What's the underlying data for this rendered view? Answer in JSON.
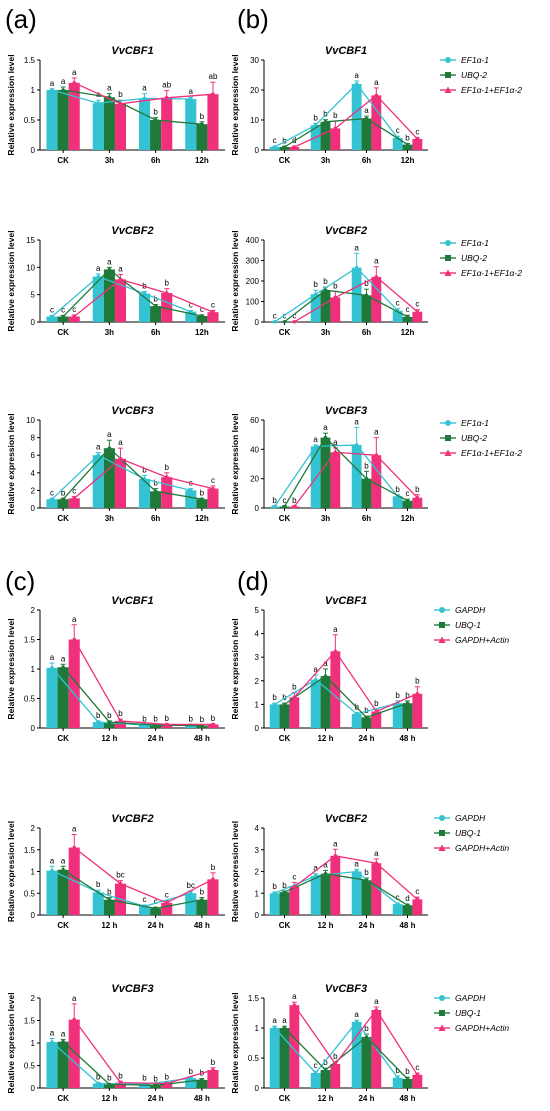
{
  "panel_labels": [
    "(a)",
    "(b)",
    "(c)",
    "(d)"
  ],
  "colors": {
    "series1": "#33c3d3",
    "series2": "#1f7a3a",
    "series3": "#f0307a"
  },
  "chart_data": [
    {
      "id": "a1",
      "panel": "(a)",
      "type": "bar",
      "title": "VvCBF1",
      "ylabel": "Relative expression level",
      "categories": [
        "CK",
        "3h",
        "6h",
        "12h"
      ],
      "ylim": [
        0,
        1.5
      ],
      "yticks": [
        0,
        0.5,
        1.0,
        1.5
      ],
      "series": [
        {
          "values": [
            1.0,
            0.78,
            0.86,
            0.85
          ],
          "errors": [
            0.02,
            0.05,
            0.08,
            0.03
          ],
          "letters": [
            "a",
            "a",
            "a",
            "a"
          ]
        },
        {
          "values": [
            1.0,
            0.88,
            0.5,
            0.43
          ],
          "errors": [
            0.05,
            0.06,
            0.04,
            0.04
          ],
          "letters": [
            "a",
            "a",
            "b",
            "b"
          ]
        },
        {
          "values": [
            1.12,
            0.77,
            0.87,
            0.93
          ],
          "errors": [
            0.08,
            0.06,
            0.12,
            0.2
          ],
          "letters": [
            "a",
            "b",
            "ab",
            "ab"
          ]
        }
      ]
    },
    {
      "id": "b1",
      "panel": "(b)",
      "type": "bar",
      "title": "VvCBF1",
      "ylabel": "Relative expression level",
      "categories": [
        "CK",
        "3h",
        "6h",
        "12h"
      ],
      "ylim": [
        0,
        30
      ],
      "yticks": [
        0,
        10,
        20,
        30
      ],
      "series": [
        {
          "name": "EF1α-1",
          "values": [
            1.0,
            8.3,
            22.0,
            4.0
          ],
          "errors": [
            0.3,
            0.6,
            1.0,
            0.6
          ],
          "letters": [
            "c",
            "b",
            "a",
            "c"
          ]
        },
        {
          "name": "UBQ-2",
          "values": [
            1.0,
            9.4,
            10.5,
            1.8
          ],
          "errors": [
            0.2,
            0.7,
            0.8,
            0.4
          ],
          "letters": [
            "b",
            "b",
            "a",
            "b"
          ]
        },
        {
          "name": "EF1α-1+EF1α-2",
          "values": [
            1.0,
            7.2,
            18.2,
            3.7
          ],
          "errors": [
            0.3,
            2.4,
            2.5,
            0.5
          ],
          "letters": [
            "d",
            "b",
            "a",
            "c"
          ]
        }
      ]
    },
    {
      "id": "a2",
      "panel": "(a)",
      "type": "bar",
      "title": "VvCBF2",
      "ylabel": "Relative expression level",
      "categories": [
        "CK",
        "3h",
        "6h",
        "12h"
      ],
      "ylim": [
        0,
        15
      ],
      "yticks": [
        0,
        5,
        10,
        15
      ],
      "series": [
        {
          "values": [
            1.0,
            8.3,
            5.2,
            1.9
          ],
          "errors": [
            0.2,
            0.5,
            0.4,
            0.2
          ],
          "letters": [
            "c",
            "a",
            "b",
            "c"
          ]
        },
        {
          "values": [
            1.0,
            9.6,
            2.9,
            1.1
          ],
          "errors": [
            0.2,
            0.4,
            0.3,
            0.2
          ],
          "letters": [
            "c",
            "a",
            "b",
            "c"
          ]
        },
        {
          "values": [
            1.0,
            7.8,
            5.3,
            1.8
          ],
          "errors": [
            0.3,
            0.9,
            0.8,
            0.3
          ],
          "letters": [
            "c",
            "a",
            "b",
            "c"
          ]
        }
      ]
    },
    {
      "id": "b2",
      "panel": "(b)",
      "type": "bar",
      "title": "VvCBF2",
      "ylabel": "Relative expression level",
      "categories": [
        "CK",
        "3h",
        "6h",
        "12h"
      ],
      "ylim": [
        0,
        400
      ],
      "yticks": [
        0,
        100,
        200,
        300,
        400
      ],
      "series": [
        {
          "name": "EF1α-1",
          "values": [
            1.0,
            135,
            265,
            55
          ],
          "errors": [
            1,
            20,
            70,
            10
          ],
          "letters": [
            "c",
            "b",
            "a",
            "c"
          ]
        },
        {
          "name": "UBQ-2",
          "values": [
            1.0,
            155,
            130,
            25
          ],
          "errors": [
            1,
            15,
            30,
            8
          ],
          "letters": [
            "c",
            "b",
            "b",
            "c"
          ]
        },
        {
          "name": "EF1α-1+EF1α-2",
          "values": [
            1.0,
            120,
            220,
            50
          ],
          "errors": [
            1,
            30,
            50,
            10
          ],
          "letters": [
            "c",
            "b",
            "a",
            "c"
          ]
        }
      ]
    },
    {
      "id": "a3",
      "panel": "(a)",
      "type": "bar",
      "title": "VvCBF3",
      "ylabel": "Relative expression level",
      "categories": [
        "CK",
        "3h",
        "6h",
        "12h"
      ],
      "ylim": [
        0,
        10
      ],
      "yticks": [
        0,
        2,
        4,
        6,
        8,
        10
      ],
      "series": [
        {
          "values": [
            1.0,
            6.0,
            3.3,
            2.0
          ],
          "errors": [
            0.1,
            0.3,
            0.4,
            0.2
          ],
          "letters": [
            "c",
            "a",
            "b",
            "c"
          ]
        },
        {
          "values": [
            1.0,
            6.8,
            1.9,
            1.0
          ],
          "errors": [
            0.1,
            0.9,
            0.3,
            0.1
          ],
          "letters": [
            "b",
            "a",
            "b",
            "b"
          ]
        },
        {
          "values": [
            1.1,
            5.6,
            3.5,
            2.2
          ],
          "errors": [
            0.2,
            1.2,
            0.5,
            0.3
          ],
          "letters": [
            "c",
            "a",
            "b",
            "c"
          ]
        }
      ]
    },
    {
      "id": "b3",
      "panel": "(b)",
      "type": "bar",
      "title": "VvCBF3",
      "ylabel": "Relative expression level",
      "categories": [
        "CK",
        "3h",
        "6h",
        "12h"
      ],
      "ylim": [
        0,
        60
      ],
      "yticks": [
        0,
        20,
        40,
        60
      ],
      "series": [
        {
          "name": "EF1α-1",
          "values": [
            1.0,
            42,
            43,
            8
          ],
          "errors": [
            0.5,
            1,
            12,
            1
          ],
          "letters": [
            "b",
            "a",
            "a",
            "b"
          ]
        },
        {
          "name": "UBQ-2",
          "values": [
            1.0,
            48,
            20,
            5
          ],
          "errors": [
            0.5,
            3,
            5,
            1
          ],
          "letters": [
            "c",
            "a",
            "b",
            "c"
          ]
        },
        {
          "name": "EF1α-1+EF1α-2",
          "values": [
            1.0,
            38,
            36,
            7
          ],
          "errors": [
            0.5,
            3,
            12,
            2
          ],
          "letters": [
            "b",
            "a",
            "a",
            "b"
          ]
        }
      ]
    },
    {
      "id": "c1",
      "panel": "(c)",
      "type": "bar",
      "title": "VvCBF1",
      "ylabel": "Relative expression level",
      "categories": [
        "CK",
        "12 h",
        "24 h",
        "48 h"
      ],
      "ylim": [
        0,
        2.0
      ],
      "yticks": [
        0,
        0.5,
        1.0,
        1.5,
        2.0
      ],
      "series": [
        {
          "values": [
            1.02,
            0.1,
            0.05,
            0.05
          ],
          "errors": [
            0.08,
            0.02,
            0.01,
            0.01
          ],
          "letters": [
            "a",
            "b",
            "b",
            "b"
          ]
        },
        {
          "values": [
            1.03,
            0.1,
            0.05,
            0.04
          ],
          "errors": [
            0.05,
            0.02,
            0.01,
            0.01
          ],
          "letters": [
            "a",
            "b",
            "b",
            "b"
          ]
        },
        {
          "values": [
            1.5,
            0.12,
            0.06,
            0.06
          ],
          "errors": [
            0.25,
            0.03,
            0.01,
            0.01
          ],
          "letters": [
            "a",
            "b",
            "b",
            "b"
          ]
        }
      ]
    },
    {
      "id": "d1",
      "panel": "(d)",
      "type": "bar",
      "title": "VvCBF1",
      "ylabel": "Relative expression level",
      "categories": [
        "CK",
        "12 h",
        "24 h",
        "48 h"
      ],
      "ylim": [
        0,
        5
      ],
      "yticks": [
        0,
        1,
        2,
        3,
        4,
        5
      ],
      "series": [
        {
          "name": "GAPDH",
          "values": [
            1.0,
            2.05,
            0.6,
            1.05
          ],
          "errors": [
            0.05,
            0.2,
            0.05,
            0.1
          ],
          "letters": [
            "b",
            "a",
            "b",
            "b"
          ]
        },
        {
          "name": "UBQ-1",
          "values": [
            1.0,
            2.2,
            0.45,
            1.05
          ],
          "errors": [
            0.05,
            0.3,
            0.05,
            0.1
          ],
          "letters": [
            "b",
            "a",
            "b",
            "b"
          ]
        },
        {
          "name": "GAPDH+Actin",
          "values": [
            1.3,
            3.25,
            0.7,
            1.45
          ],
          "errors": [
            0.2,
            0.7,
            0.1,
            0.3
          ],
          "letters": [
            "b",
            "a",
            "b",
            "b"
          ]
        }
      ]
    },
    {
      "id": "c2",
      "panel": "(c)",
      "type": "bar",
      "title": "VvCBF2",
      "ylabel": "Relative expression level",
      "categories": [
        "CK",
        "12 h",
        "24 h",
        "48 h"
      ],
      "ylim": [
        0,
        2.0
      ],
      "yticks": [
        0,
        0.5,
        1.0,
        1.5,
        2.0
      ],
      "series": [
        {
          "values": [
            1.02,
            0.52,
            0.2,
            0.5
          ],
          "errors": [
            0.1,
            0.05,
            0.03,
            0.05
          ],
          "letters": [
            "a",
            "b",
            "c",
            "bc"
          ]
        },
        {
          "values": [
            1.04,
            0.35,
            0.15,
            0.35
          ],
          "errors": [
            0.08,
            0.05,
            0.03,
            0.05
          ],
          "letters": [
            "a",
            "b",
            "c",
            "b"
          ]
        },
        {
          "values": [
            1.55,
            0.72,
            0.28,
            0.82
          ],
          "errors": [
            0.3,
            0.07,
            0.05,
            0.15
          ],
          "letters": [
            "a",
            "bc",
            "c",
            "b"
          ]
        }
      ]
    },
    {
      "id": "d2",
      "panel": "(d)",
      "type": "bar",
      "title": "VvCBF2",
      "ylabel": "Relative expression level",
      "categories": [
        "CK",
        "12 h",
        "24 h",
        "48 h"
      ],
      "ylim": [
        0,
        4
      ],
      "yticks": [
        0,
        1,
        2,
        3,
        4
      ],
      "series": [
        {
          "name": "GAPDH",
          "values": [
            1.0,
            1.8,
            2.0,
            0.5
          ],
          "errors": [
            0.05,
            0.1,
            0.1,
            0.05
          ],
          "letters": [
            "b",
            "a",
            "a",
            "c"
          ]
        },
        {
          "name": "UBQ-1",
          "values": [
            1.05,
            1.9,
            1.6,
            0.45
          ],
          "errors": [
            0.05,
            0.15,
            0.1,
            0.05
          ],
          "letters": [
            "b",
            "a",
            "b",
            "d"
          ]
        },
        {
          "name": "GAPDH+Actin",
          "values": [
            1.3,
            2.72,
            2.38,
            0.72
          ],
          "errors": [
            0.2,
            0.3,
            0.2,
            0.1
          ],
          "letters": [
            "c",
            "a",
            "a",
            "c"
          ]
        }
      ]
    },
    {
      "id": "c3",
      "panel": "(c)",
      "type": "bar",
      "title": "VvCBF3",
      "ylabel": "Relative expression level",
      "categories": [
        "CK",
        "12 h",
        "24 h",
        "48 h"
      ],
      "ylim": [
        0,
        2.0
      ],
      "yticks": [
        0,
        0.5,
        1.0,
        1.5,
        2.0
      ],
      "series": [
        {
          "values": [
            1.02,
            0.1,
            0.08,
            0.22
          ],
          "errors": [
            0.08,
            0.02,
            0.02,
            0.03
          ],
          "letters": [
            "a",
            "b",
            "b",
            "b"
          ]
        },
        {
          "values": [
            1.03,
            0.08,
            0.06,
            0.18
          ],
          "errors": [
            0.05,
            0.02,
            0.02,
            0.03
          ],
          "letters": [
            "a",
            "b",
            "b",
            "b"
          ]
        },
        {
          "values": [
            1.52,
            0.12,
            0.1,
            0.4
          ],
          "errors": [
            0.35,
            0.03,
            0.02,
            0.05
          ],
          "letters": [
            "a",
            "b",
            "b",
            "b"
          ]
        }
      ]
    },
    {
      "id": "d3",
      "panel": "(d)",
      "type": "bar",
      "title": "VvCBF3",
      "ylabel": "Relative expression level",
      "categories": [
        "CK",
        "12 h",
        "24 h",
        "48 h"
      ],
      "ylim": [
        0,
        1.5
      ],
      "yticks": [
        0,
        0.5,
        1.0,
        1.5
      ],
      "series": [
        {
          "name": "GAPDH",
          "values": [
            1.0,
            0.25,
            1.1,
            0.17
          ],
          "errors": [
            0.03,
            0.03,
            0.03,
            0.03
          ],
          "letters": [
            "a",
            "c",
            "a",
            "b"
          ]
        },
        {
          "name": "UBQ-1",
          "values": [
            1.0,
            0.3,
            0.85,
            0.15
          ],
          "errors": [
            0.03,
            0.03,
            0.05,
            0.03
          ],
          "letters": [
            "a",
            "b",
            "b",
            "b"
          ]
        },
        {
          "name": "GAPDH+Actin",
          "values": [
            1.38,
            0.4,
            1.3,
            0.22
          ],
          "errors": [
            0.05,
            0.03,
            0.05,
            0.03
          ],
          "letters": [
            "a",
            "b",
            "a",
            "c"
          ]
        }
      ]
    }
  ]
}
